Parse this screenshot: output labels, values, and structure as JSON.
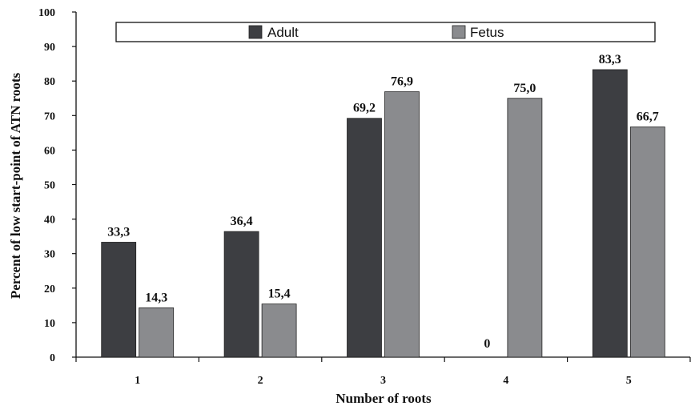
{
  "chart_data": {
    "type": "bar",
    "title": "",
    "xlabel": "Number of roots",
    "ylabel": "Percent of low start-point of ATN roots",
    "categories": [
      "1",
      "2",
      "3",
      "4",
      "5"
    ],
    "series": [
      {
        "name": "Adult",
        "values": [
          33.3,
          36.4,
          69.2,
          0,
          83.3
        ],
        "labels": [
          "33,3",
          "36,4",
          "69,2",
          "0",
          "83,3"
        ],
        "color": "#3d3e42"
      },
      {
        "name": "Fetus",
        "values": [
          14.3,
          15.4,
          76.9,
          75.0,
          66.7
        ],
        "labels": [
          "14,3",
          "15,4",
          "76,9",
          "75,0",
          "66,7"
        ],
        "color": "#8a8b8e"
      }
    ],
    "ylim": [
      0,
      100
    ],
    "yticks": [
      "0",
      "10",
      "20",
      "30",
      "40",
      "50",
      "60",
      "70",
      "80",
      "90",
      "100"
    ],
    "grid": false,
    "legend_position": "top"
  }
}
